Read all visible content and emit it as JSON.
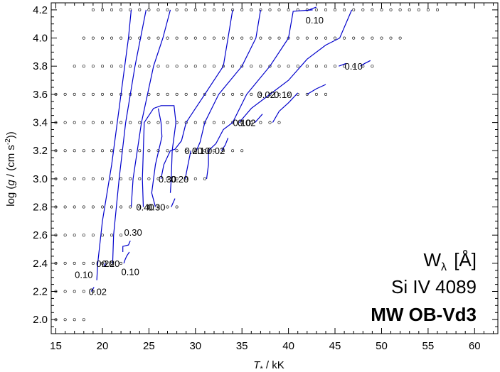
{
  "chart_data": {
    "type": "contour",
    "xlabel": "T* / kK",
    "ylabel": "log (g / (cm s^-2))",
    "xlim": [
      14.5,
      62.5
    ],
    "ylim": [
      1.9,
      4.25
    ],
    "x_ticks": [
      15,
      20,
      25,
      30,
      35,
      40,
      45,
      50,
      55,
      60
    ],
    "y_ticks": [
      2.0,
      2.2,
      2.4,
      2.6,
      2.8,
      3.0,
      3.2,
      3.4,
      3.6,
      3.8,
      4.0,
      4.2
    ],
    "x_tick_labels": [
      "15",
      "20",
      "25",
      "30",
      "35",
      "40",
      "45",
      "50",
      "55",
      "60"
    ],
    "y_tick_labels": [
      "2.0",
      "2.2",
      "2.4",
      "2.6",
      "2.8",
      "3.0",
      "3.2",
      "3.4",
      "3.6",
      "3.8",
      "4.0",
      "4.2"
    ],
    "grid": false,
    "line_color": "#0000cc",
    "annotation": {
      "quantity": "Wλ",
      "unit": "[Å]",
      "line": "Si IV 4089",
      "grid_name": "MW OB-Vd3"
    },
    "model_grid": [
      {
        "logg": 2.0,
        "t_start": 15,
        "t_end": 18
      },
      {
        "logg": 2.2,
        "t_start": 15,
        "t_end": 19
      },
      {
        "logg": 2.4,
        "t_start": 15,
        "t_end": 22
      },
      {
        "logg": 2.6,
        "t_start": 15,
        "t_end": 22
      },
      {
        "logg": 2.8,
        "t_start": 15,
        "t_end": 28
      },
      {
        "logg": 3.0,
        "t_start": 15,
        "t_end": 31
      },
      {
        "logg": 3.2,
        "t_start": 15,
        "t_end": 35
      },
      {
        "logg": 3.4,
        "t_start": 15,
        "t_end": 39
      },
      {
        "logg": 3.6,
        "t_start": 15,
        "t_end": 44
      },
      {
        "logg": 3.8,
        "t_start": 17,
        "t_end": 49
      },
      {
        "logg": 4.0,
        "t_start": 18,
        "t_end": 52
      },
      {
        "logg": 4.2,
        "t_start": 19,
        "t_end": 56
      }
    ],
    "contours": [
      {
        "points": [
          [
            18.8,
            2.2
          ],
          [
            19.1,
            2.23
          ]
        ]
      },
      {
        "points": [
          [
            19.4,
            2.28
          ],
          [
            19.5,
            2.4
          ],
          [
            20.0,
            2.7
          ],
          [
            21.0,
            3.1
          ],
          [
            22.0,
            3.6
          ],
          [
            22.8,
            4.0
          ],
          [
            23.1,
            4.2
          ]
        ]
      },
      {
        "points": [
          [
            20.2,
            2.38
          ],
          [
            20.3,
            2.4
          ]
        ]
      },
      {
        "points": [
          [
            21.1,
            2.4
          ],
          [
            21.2,
            2.6
          ],
          [
            21.8,
            3.0
          ],
          [
            22.5,
            3.4
          ],
          [
            23.5,
            3.8
          ],
          [
            24.7,
            4.2
          ]
        ]
      },
      {
        "points": [
          [
            22.2,
            2.48
          ],
          [
            22.2,
            2.52
          ],
          [
            22.8,
            2.53
          ],
          [
            23.0,
            2.56
          ]
        ]
      },
      {
        "points": [
          [
            22.3,
            2.4
          ],
          [
            22.4,
            2.42
          ],
          [
            22.6,
            2.45
          ],
          [
            22.9,
            2.48
          ]
        ]
      },
      {
        "points": [
          [
            23.1,
            2.8
          ],
          [
            23.3,
            3.0
          ],
          [
            24.2,
            3.4
          ],
          [
            25.5,
            3.8
          ],
          [
            26.5,
            4.0
          ],
          [
            27.3,
            4.2
          ]
        ]
      },
      {
        "points": [
          [
            24.4,
            2.8
          ],
          [
            24.3,
            3.0
          ],
          [
            24.5,
            3.4
          ],
          [
            25.5,
            3.5
          ],
          [
            26.3,
            3.52
          ],
          [
            27.7,
            3.52
          ],
          [
            27.9,
            3.4
          ],
          [
            27.5,
            3.2
          ],
          [
            27.4,
            3.0
          ],
          [
            27.3,
            2.9
          ]
        ]
      },
      {
        "points": [
          [
            25.7,
            2.8
          ],
          [
            25.3,
            2.9
          ],
          [
            25.5,
            3.0
          ],
          [
            25.7,
            3.1
          ],
          [
            26.4,
            3.3
          ],
          [
            26.3,
            3.4
          ],
          [
            26.0,
            3.5
          ]
        ]
      },
      {
        "points": [
          [
            27.4,
            2.8
          ],
          [
            27.8,
            2.86
          ]
        ]
      },
      {
        "points": [
          [
            26.3,
            3.0
          ],
          [
            26.6,
            3.1
          ],
          [
            27.3,
            3.2
          ],
          [
            27.8,
            3.21
          ],
          [
            28.5,
            3.27
          ],
          [
            29.0,
            3.4
          ],
          [
            30.0,
            3.5
          ],
          [
            31.0,
            3.6
          ],
          [
            33.0,
            3.8
          ],
          [
            33.5,
            4.0
          ],
          [
            34.0,
            4.2
          ]
        ]
      },
      {
        "points": [
          [
            28.9,
            3.0
          ],
          [
            29.2,
            3.1
          ],
          [
            29.5,
            3.2
          ]
        ]
      },
      {
        "points": [
          [
            30.1,
            3.2
          ],
          [
            30.5,
            3.26
          ],
          [
            31.0,
            3.4
          ],
          [
            32.5,
            3.6
          ],
          [
            35.0,
            3.8
          ],
          [
            36.5,
            4.0
          ],
          [
            37.0,
            4.2
          ]
        ]
      },
      {
        "points": [
          [
            31.2,
            3.0
          ],
          [
            31.4,
            3.1
          ],
          [
            31.4,
            3.2
          ]
        ]
      },
      {
        "points": [
          [
            31.4,
            3.2
          ],
          [
            32.2,
            3.25
          ],
          [
            33.0,
            3.35
          ],
          [
            34.0,
            3.4
          ],
          [
            35.5,
            3.6
          ],
          [
            38.0,
            3.8
          ],
          [
            40.0,
            4.0
          ],
          [
            40.5,
            4.19
          ],
          [
            42.6,
            4.2
          ]
        ]
      },
      {
        "points": [
          [
            32.8,
            3.2
          ],
          [
            33.2,
            3.24
          ],
          [
            33.5,
            3.29
          ]
        ]
      },
      {
        "points": [
          [
            34.7,
            3.4
          ],
          [
            36.0,
            3.5
          ],
          [
            38.0,
            3.6
          ],
          [
            40.0,
            3.7
          ],
          [
            42.0,
            3.85
          ],
          [
            44.0,
            3.95
          ],
          [
            45.5,
            4.0
          ],
          [
            46.8,
            4.2
          ]
        ]
      },
      {
        "points": [
          [
            36.4,
            3.4
          ],
          [
            37.2,
            3.46
          ]
        ]
      },
      {
        "points": [
          [
            38.3,
            3.4
          ],
          [
            39.0,
            3.48
          ],
          [
            40.0,
            3.54
          ],
          [
            41.0,
            3.61
          ]
        ]
      },
      {
        "points": [
          [
            42.0,
            3.6
          ],
          [
            43.0,
            3.64
          ],
          [
            44.0,
            3.67
          ]
        ]
      },
      {
        "points": [
          [
            45.4,
            3.8
          ],
          [
            46.2,
            3.82
          ]
        ]
      },
      {
        "points": [
          [
            47.7,
            3.8
          ],
          [
            48.2,
            3.82
          ],
          [
            48.8,
            3.84
          ]
        ]
      },
      {
        "points": [
          [
            42.2,
            4.2
          ],
          [
            43.0,
            4.22
          ]
        ]
      }
    ],
    "contour_labels": [
      {
        "text": "0.02",
        "x": 19.5,
        "y": 2.2
      },
      {
        "text": "0.10",
        "x": 18.0,
        "y": 2.32
      },
      {
        "text": "0.20",
        "x": 20.3,
        "y": 2.4
      },
      {
        "text": "0.20",
        "x": 20.9,
        "y": 2.4
      },
      {
        "text": "0.10",
        "x": 23.0,
        "y": 2.34
      },
      {
        "text": "0.30",
        "x": 23.3,
        "y": 2.62
      },
      {
        "text": "0.40",
        "x": 24.6,
        "y": 2.8
      },
      {
        "text": "0.30",
        "x": 25.8,
        "y": 2.8
      },
      {
        "text": "0.30",
        "x": 27.0,
        "y": 3.0
      },
      {
        "text": "0.20",
        "x": 28.3,
        "y": 3.0
      },
      {
        "text": "0.20",
        "x": 29.8,
        "y": 3.2
      },
      {
        "text": "0.10",
        "x": 30.6,
        "y": 3.2
      },
      {
        "text": "0.02",
        "x": 32.2,
        "y": 3.2
      },
      {
        "text": "0.10",
        "x": 35.0,
        "y": 3.4
      },
      {
        "text": "0.02",
        "x": 35.5,
        "y": 3.4
      },
      {
        "text": "0.02",
        "x": 37.6,
        "y": 3.6
      },
      {
        "text": "0.10",
        "x": 39.4,
        "y": 3.6
      },
      {
        "text": "0.10",
        "x": 47.0,
        "y": 3.8
      },
      {
        "text": "0.10",
        "x": 42.8,
        "y": 4.13
      }
    ]
  }
}
